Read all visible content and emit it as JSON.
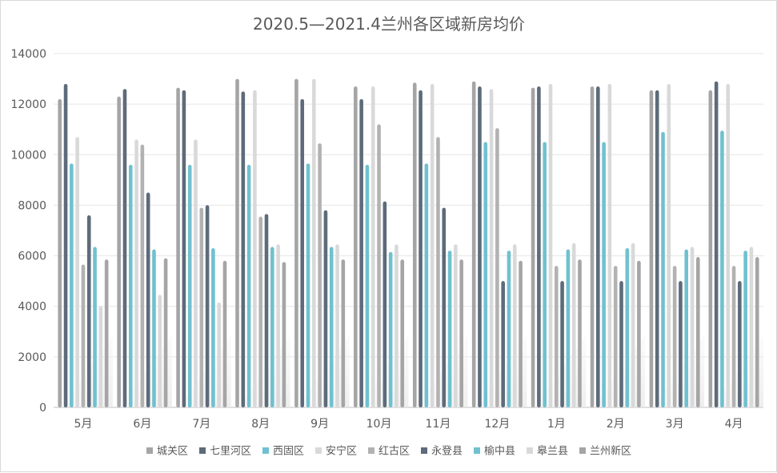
{
  "chart_data": {
    "type": "bar",
    "title": "2020.5—2021.4兰州各区域新房均价",
    "xlabel": "",
    "ylabel": "",
    "ylim": [
      0,
      14000
    ],
    "yticks": [
      0,
      2000,
      4000,
      6000,
      8000,
      10000,
      12000,
      14000
    ],
    "grid": true,
    "legend_position": "bottom",
    "categories": [
      "5月",
      "6月",
      "7月",
      "8月",
      "9月",
      "10月",
      "11月",
      "12月",
      "1月",
      "2月",
      "3月",
      "4月"
    ],
    "series": [
      {
        "name": "城关区",
        "color": "#a5a5a5",
        "values": [
          12200,
          12300,
          12650,
          13000,
          13000,
          12700,
          12850,
          12900,
          12650,
          12700,
          12550,
          12550
        ]
      },
      {
        "name": "七里河区",
        "color": "#5d6b7a",
        "values": [
          12800,
          12600,
          12550,
          12500,
          12200,
          12200,
          12550,
          12700,
          12700,
          12700,
          12550,
          12900
        ]
      },
      {
        "name": "西固区",
        "color": "#70c1cf",
        "values": [
          9650,
          9600,
          9600,
          9600,
          9650,
          9600,
          9650,
          10500,
          10500,
          10500,
          10900,
          10950
        ]
      },
      {
        "name": "安宁区",
        "color": "#d9d9d9",
        "values": [
          10700,
          10600,
          10600,
          12550,
          13000,
          12700,
          12800,
          12600,
          12800,
          12800,
          12800,
          12800
        ]
      },
      {
        "name": "红古区",
        "color": "#b2b2b2",
        "values": [
          5650,
          10400,
          7900,
          7550,
          10450,
          11200,
          10700,
          11050,
          5600,
          5600,
          5600,
          5600
        ]
      },
      {
        "name": "永登县",
        "color": "#5d6b7a",
        "values": [
          7600,
          8500,
          8000,
          7650,
          7800,
          8150,
          7900,
          5000,
          5000,
          5000,
          5000,
          5000
        ]
      },
      {
        "name": "榆中县",
        "color": "#70c1cf",
        "values": [
          6350,
          6250,
          6300,
          6350,
          6350,
          6150,
          6200,
          6200,
          6250,
          6300,
          6250,
          6200
        ]
      },
      {
        "name": "皋兰县",
        "color": "#d9d9d9",
        "values": [
          4000,
          4450,
          4150,
          6450,
          6450,
          6450,
          6450,
          6450,
          6500,
          6500,
          6350,
          6350
        ]
      },
      {
        "name": "兰州新区",
        "color": "#a5a5a5",
        "values": [
          5850,
          5900,
          5800,
          5750,
          5850,
          5850,
          5850,
          5800,
          5850,
          5800,
          5950,
          5950
        ]
      }
    ]
  }
}
